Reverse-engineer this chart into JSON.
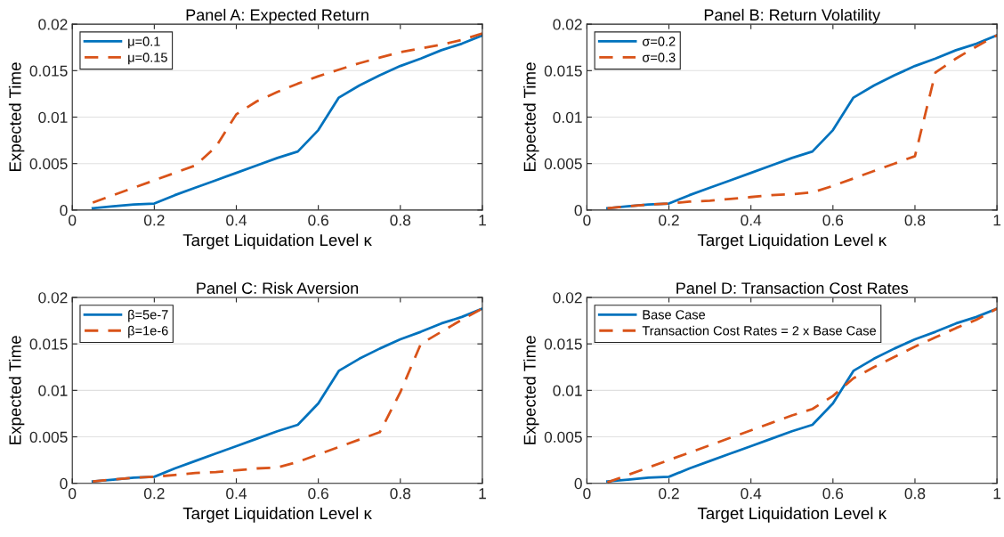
{
  "chart_data": [
    {
      "type": "line",
      "title": "Panel A: Expected Return",
      "xlabel": "Target Liquidation Level κ",
      "ylabel": "Expected Time",
      "xlim": [
        0,
        1
      ],
      "ylim": [
        0,
        0.02
      ],
      "xticks": [
        0,
        0.2,
        0.4,
        0.6,
        0.8,
        1
      ],
      "yticks": [
        0,
        0.005,
        0.01,
        0.015,
        0.02
      ],
      "grid": "y",
      "legend": "top left",
      "x": [
        0.05,
        0.1,
        0.15,
        0.2,
        0.25,
        0.3,
        0.35,
        0.4,
        0.45,
        0.5,
        0.55,
        0.6,
        0.65,
        0.7,
        0.75,
        0.8,
        0.85,
        0.9,
        0.95,
        1.0
      ],
      "series": [
        {
          "name": "μ=0.1",
          "color": "#0072bd",
          "line_style": "solid",
          "values": [
            0.0002,
            0.0004,
            0.0006,
            0.0007,
            0.0016,
            0.0024,
            0.0032,
            0.004,
            0.0048,
            0.0056,
            0.0063,
            0.0086,
            0.0121,
            0.0134,
            0.0145,
            0.0155,
            0.0163,
            0.0172,
            0.0179,
            0.0188
          ]
        },
        {
          "name": "μ=0.15",
          "color": "#d95319",
          "line_style": "dashed",
          "values": [
            0.0008,
            0.0016,
            0.0024,
            0.0032,
            0.004,
            0.0048,
            0.0068,
            0.0103,
            0.0117,
            0.0127,
            0.0136,
            0.0144,
            0.0151,
            0.0158,
            0.0164,
            0.017,
            0.0174,
            0.0178,
            0.0183,
            0.019
          ]
        }
      ]
    },
    {
      "type": "line",
      "title": "Panel B: Return Volatility",
      "xlabel": "Target Liquidation Level κ",
      "ylabel": "Expected Time",
      "xlim": [
        0,
        1
      ],
      "ylim": [
        0,
        0.02
      ],
      "xticks": [
        0,
        0.2,
        0.4,
        0.6,
        0.8,
        1
      ],
      "yticks": [
        0,
        0.005,
        0.01,
        0.015,
        0.02
      ],
      "grid": "y",
      "legend": "top left",
      "x": [
        0.05,
        0.1,
        0.15,
        0.2,
        0.25,
        0.3,
        0.35,
        0.4,
        0.45,
        0.5,
        0.55,
        0.6,
        0.65,
        0.7,
        0.75,
        0.8,
        0.85,
        0.9,
        0.95,
        1.0
      ],
      "series": [
        {
          "name": "σ=0.2",
          "color": "#0072bd",
          "line_style": "solid",
          "values": [
            0.0002,
            0.0004,
            0.0006,
            0.0007,
            0.0016,
            0.0024,
            0.0032,
            0.004,
            0.0048,
            0.0056,
            0.0063,
            0.0086,
            0.0121,
            0.0134,
            0.0145,
            0.0155,
            0.0163,
            0.0172,
            0.0179,
            0.0188
          ]
        },
        {
          "name": "σ=0.3",
          "color": "#d95319",
          "line_style": "dashed",
          "values": [
            0.0002,
            0.0004,
            0.0006,
            0.0007,
            0.0009,
            0.001,
            0.0012,
            0.0014,
            0.0016,
            0.0017,
            0.0019,
            0.0026,
            0.0034,
            0.0042,
            0.005,
            0.0058,
            0.0148,
            0.0163,
            0.0176,
            0.0188
          ]
        }
      ]
    },
    {
      "type": "line",
      "title": "Panel C: Risk Aversion",
      "xlabel": "Target Liquidation Level κ",
      "ylabel": "Expected Time",
      "xlim": [
        0,
        1
      ],
      "ylim": [
        0,
        0.02
      ],
      "xticks": [
        0,
        0.2,
        0.4,
        0.6,
        0.8,
        1
      ],
      "yticks": [
        0,
        0.005,
        0.01,
        0.015,
        0.02
      ],
      "grid": "y",
      "legend": "top left",
      "x": [
        0.05,
        0.1,
        0.15,
        0.2,
        0.25,
        0.3,
        0.35,
        0.4,
        0.45,
        0.5,
        0.55,
        0.6,
        0.65,
        0.7,
        0.75,
        0.8,
        0.85,
        0.9,
        0.95,
        1.0
      ],
      "series": [
        {
          "name": "β=5e-7",
          "color": "#0072bd",
          "line_style": "solid",
          "values": [
            0.0002,
            0.0004,
            0.0006,
            0.0007,
            0.0016,
            0.0024,
            0.0032,
            0.004,
            0.0048,
            0.0056,
            0.0063,
            0.0086,
            0.0121,
            0.0134,
            0.0145,
            0.0155,
            0.0163,
            0.0172,
            0.0179,
            0.0188
          ]
        },
        {
          "name": "β=1e-6",
          "color": "#d95319",
          "line_style": "dashed",
          "values": [
            0.0002,
            0.0004,
            0.0006,
            0.0007,
            0.0009,
            0.0011,
            0.0012,
            0.0014,
            0.0016,
            0.0017,
            0.0023,
            0.0031,
            0.0039,
            0.0047,
            0.0055,
            0.0098,
            0.015,
            0.0163,
            0.0176,
            0.0188
          ]
        }
      ]
    },
    {
      "type": "line",
      "title": "Panel D: Transaction Cost Rates",
      "xlabel": "Target Liquidation Level κ",
      "ylabel": "Expected Time",
      "xlim": [
        0,
        1
      ],
      "ylim": [
        0,
        0.02
      ],
      "xticks": [
        0,
        0.2,
        0.4,
        0.6,
        0.8,
        1
      ],
      "yticks": [
        0,
        0.005,
        0.01,
        0.015,
        0.02
      ],
      "grid": "y",
      "legend": "top left",
      "x": [
        0.05,
        0.1,
        0.15,
        0.2,
        0.25,
        0.3,
        0.35,
        0.4,
        0.45,
        0.5,
        0.55,
        0.6,
        0.65,
        0.7,
        0.75,
        0.8,
        0.85,
        0.9,
        0.95,
        1.0
      ],
      "series": [
        {
          "name": "Base Case",
          "color": "#0072bd",
          "line_style": "solid",
          "values": [
            0.0002,
            0.0004,
            0.0006,
            0.0007,
            0.0016,
            0.0024,
            0.0032,
            0.004,
            0.0048,
            0.0056,
            0.0063,
            0.0086,
            0.0121,
            0.0134,
            0.0145,
            0.0155,
            0.0163,
            0.0172,
            0.0179,
            0.0188
          ]
        },
        {
          "name": "Transaction Cost Rates = 2 x Base Case",
          "color": "#d95319",
          "line_style": "dashed",
          "values": [
            0.0001,
            0.0009,
            0.0017,
            0.0025,
            0.0033,
            0.0041,
            0.0049,
            0.0057,
            0.0065,
            0.0073,
            0.008,
            0.0094,
            0.0113,
            0.0125,
            0.0136,
            0.0147,
            0.0157,
            0.0167,
            0.0176,
            0.0188
          ]
        }
      ]
    }
  ]
}
